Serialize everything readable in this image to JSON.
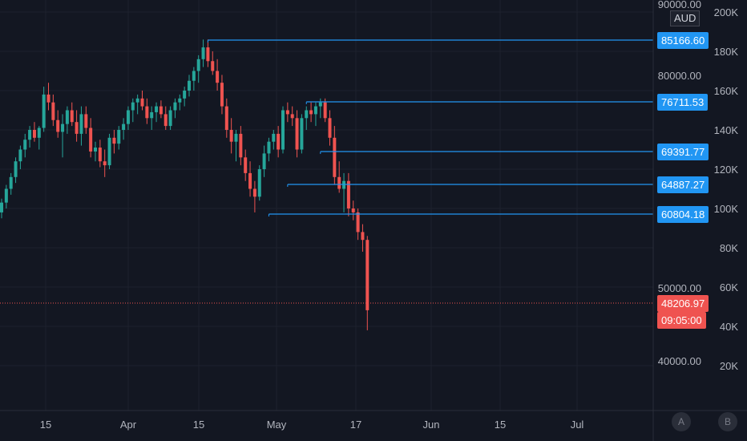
{
  "chart_data": {
    "type": "candlestick",
    "currency": "AUD",
    "x_ticks": [
      "15",
      "Apr",
      "15",
      "May",
      "17",
      "Jun",
      "15",
      "Jul"
    ],
    "left_axis_ticks": [
      "90000.00",
      "80000.00",
      "50000.00",
      "40000.00"
    ],
    "right_axis_ticks": [
      "200K",
      "180K",
      "160K",
      "140K",
      "120K",
      "100K",
      "80K",
      "60K",
      "40K",
      "20K"
    ],
    "ohlc": [
      [
        98000,
        105000,
        95000,
        103000
      ],
      [
        103000,
        112000,
        100000,
        110000
      ],
      [
        110000,
        118000,
        107000,
        116000
      ],
      [
        116000,
        126000,
        113000,
        124000
      ],
      [
        124000,
        132000,
        120000,
        130000
      ],
      [
        130000,
        138000,
        126000,
        135000
      ],
      [
        135000,
        142000,
        131000,
        140000
      ],
      [
        140000,
        144000,
        134000,
        136000
      ],
      [
        136000,
        142000,
        130000,
        141000
      ],
      [
        141000,
        162000,
        139000,
        158000
      ],
      [
        158000,
        164000,
        150000,
        154000
      ],
      [
        154000,
        158000,
        142000,
        145000
      ],
      [
        145000,
        150000,
        136000,
        139000
      ],
      [
        139000,
        148000,
        126000,
        143000
      ],
      [
        143000,
        152000,
        138000,
        150000
      ],
      [
        150000,
        154000,
        142000,
        144000
      ],
      [
        144000,
        150000,
        134000,
        138000
      ],
      [
        138000,
        152000,
        132000,
        148000
      ],
      [
        148000,
        152000,
        138000,
        141000
      ],
      [
        141000,
        146000,
        126000,
        129000
      ],
      [
        129000,
        134000,
        124000,
        131000
      ],
      [
        131000,
        135000,
        121000,
        124000
      ],
      [
        124000,
        130000,
        116000,
        122000
      ],
      [
        122000,
        138000,
        120000,
        136000
      ],
      [
        136000,
        140000,
        128000,
        133000
      ],
      [
        133000,
        142000,
        130000,
        140000
      ],
      [
        140000,
        146000,
        135000,
        143000
      ],
      [
        143000,
        152000,
        140000,
        150000
      ],
      [
        150000,
        156000,
        144000,
        154000
      ],
      [
        154000,
        158000,
        148000,
        156000
      ],
      [
        156000,
        160000,
        150000,
        152000
      ],
      [
        152000,
        156000,
        143000,
        146000
      ],
      [
        146000,
        152000,
        140000,
        149000
      ],
      [
        149000,
        154000,
        144000,
        152000
      ],
      [
        152000,
        155000,
        146000,
        148000
      ],
      [
        148000,
        152000,
        140000,
        142000
      ],
      [
        142000,
        152000,
        140000,
        150000
      ],
      [
        150000,
        156000,
        146000,
        154000
      ],
      [
        154000,
        158000,
        150000,
        156000
      ],
      [
        156000,
        162000,
        152000,
        160000
      ],
      [
        160000,
        168000,
        157000,
        165000
      ],
      [
        165000,
        172000,
        160000,
        170000
      ],
      [
        170000,
        178000,
        164000,
        176000
      ],
      [
        176000,
        186000,
        172000,
        182000
      ],
      [
        182000,
        186000,
        172000,
        175000
      ],
      [
        175000,
        180000,
        168000,
        170000
      ],
      [
        170000,
        176000,
        160000,
        164000
      ],
      [
        164000,
        168000,
        148000,
        152000
      ],
      [
        152000,
        156000,
        136000,
        140000
      ],
      [
        140000,
        146000,
        128000,
        134000
      ],
      [
        134000,
        140000,
        124000,
        138000
      ],
      [
        138000,
        142000,
        122000,
        126000
      ],
      [
        126000,
        130000,
        114000,
        118000
      ],
      [
        118000,
        124000,
        106000,
        110000
      ],
      [
        110000,
        114000,
        98000,
        106000
      ],
      [
        106000,
        122000,
        104000,
        120000
      ],
      [
        120000,
        132000,
        116000,
        128000
      ],
      [
        128000,
        136000,
        124000,
        134000
      ],
      [
        134000,
        140000,
        130000,
        138000
      ],
      [
        138000,
        142000,
        126000,
        130000
      ],
      [
        130000,
        152000,
        128000,
        150000
      ],
      [
        150000,
        154000,
        144000,
        148000
      ],
      [
        148000,
        152000,
        142000,
        146000
      ],
      [
        146000,
        150000,
        126000,
        130000
      ],
      [
        130000,
        148000,
        128000,
        146000
      ],
      [
        146000,
        152000,
        140000,
        150000
      ],
      [
        150000,
        154000,
        144000,
        148000
      ],
      [
        148000,
        154000,
        142000,
        152000
      ],
      [
        152000,
        156000,
        146000,
        154000
      ],
      [
        154000,
        156000,
        144000,
        146000
      ],
      [
        146000,
        150000,
        132000,
        136000
      ],
      [
        136000,
        142000,
        112000,
        116000
      ],
      [
        116000,
        124000,
        108000,
        110000
      ],
      [
        110000,
        118000,
        98000,
        114000
      ],
      [
        114000,
        118000,
        96000,
        100000
      ],
      [
        100000,
        104000,
        94000,
        98000
      ],
      [
        98000,
        100000,
        84000,
        88000
      ],
      [
        88000,
        92000,
        78000,
        84000
      ],
      [
        84000,
        86000,
        38000,
        48206.97
      ]
    ],
    "horizontal_levels": [
      {
        "label": "85166.60",
        "start_index": 44
      },
      {
        "label": "76711.53",
        "start_index": 65
      },
      {
        "label": "69391.77",
        "start_index": 68
      },
      {
        "label": "64887.27",
        "start_index": 61
      },
      {
        "label": "60804.18",
        "start_index": 57
      }
    ],
    "last_price": "48206.97",
    "countdown": "09:05:00"
  },
  "buttons": {
    "a": "A",
    "b": "B"
  }
}
